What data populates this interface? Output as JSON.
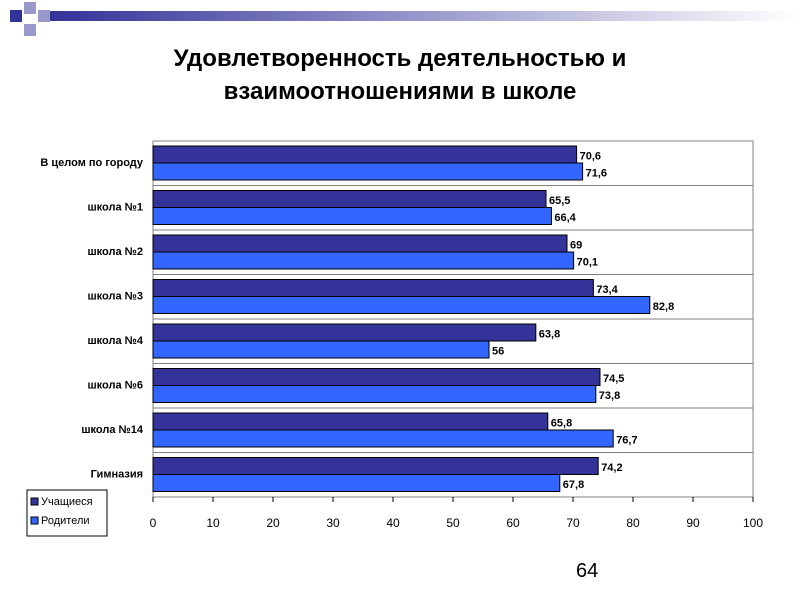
{
  "chart_data": {
    "type": "bar",
    "orientation": "horizontal",
    "title": "Удовлетворенность деятельностью и взаимоотношениями в школе",
    "categories": [
      "В целом по городу",
      "школа №1",
      "школа №2",
      "школа №3",
      "школа №4",
      "школа №6",
      "школа №14",
      "Гимназия"
    ],
    "series": [
      {
        "name": "Учащиеся",
        "color": "#333399",
        "values": [
          70.6,
          65.5,
          69,
          73.4,
          63.8,
          74.5,
          65.8,
          74.2
        ],
        "value_labels": [
          "70,6",
          "65,5",
          "69",
          "73,4",
          "63,8",
          "74,5",
          "65,8",
          "74,2"
        ]
      },
      {
        "name": "Родители",
        "color": "#3366ff",
        "values": [
          71.6,
          66.4,
          70.1,
          82.8,
          56,
          73.8,
          76.7,
          67.8
        ],
        "value_labels": [
          "71,6",
          "66,4",
          "70,1",
          "82,8",
          "56",
          "73,8",
          "76,7",
          "67,8"
        ]
      }
    ],
    "xlim": [
      0,
      100
    ],
    "xticks": [
      0,
      10,
      20,
      30,
      40,
      50,
      60,
      70,
      80,
      90,
      100
    ],
    "legend": "bottom-left"
  },
  "slide": {
    "page_number": "64"
  }
}
